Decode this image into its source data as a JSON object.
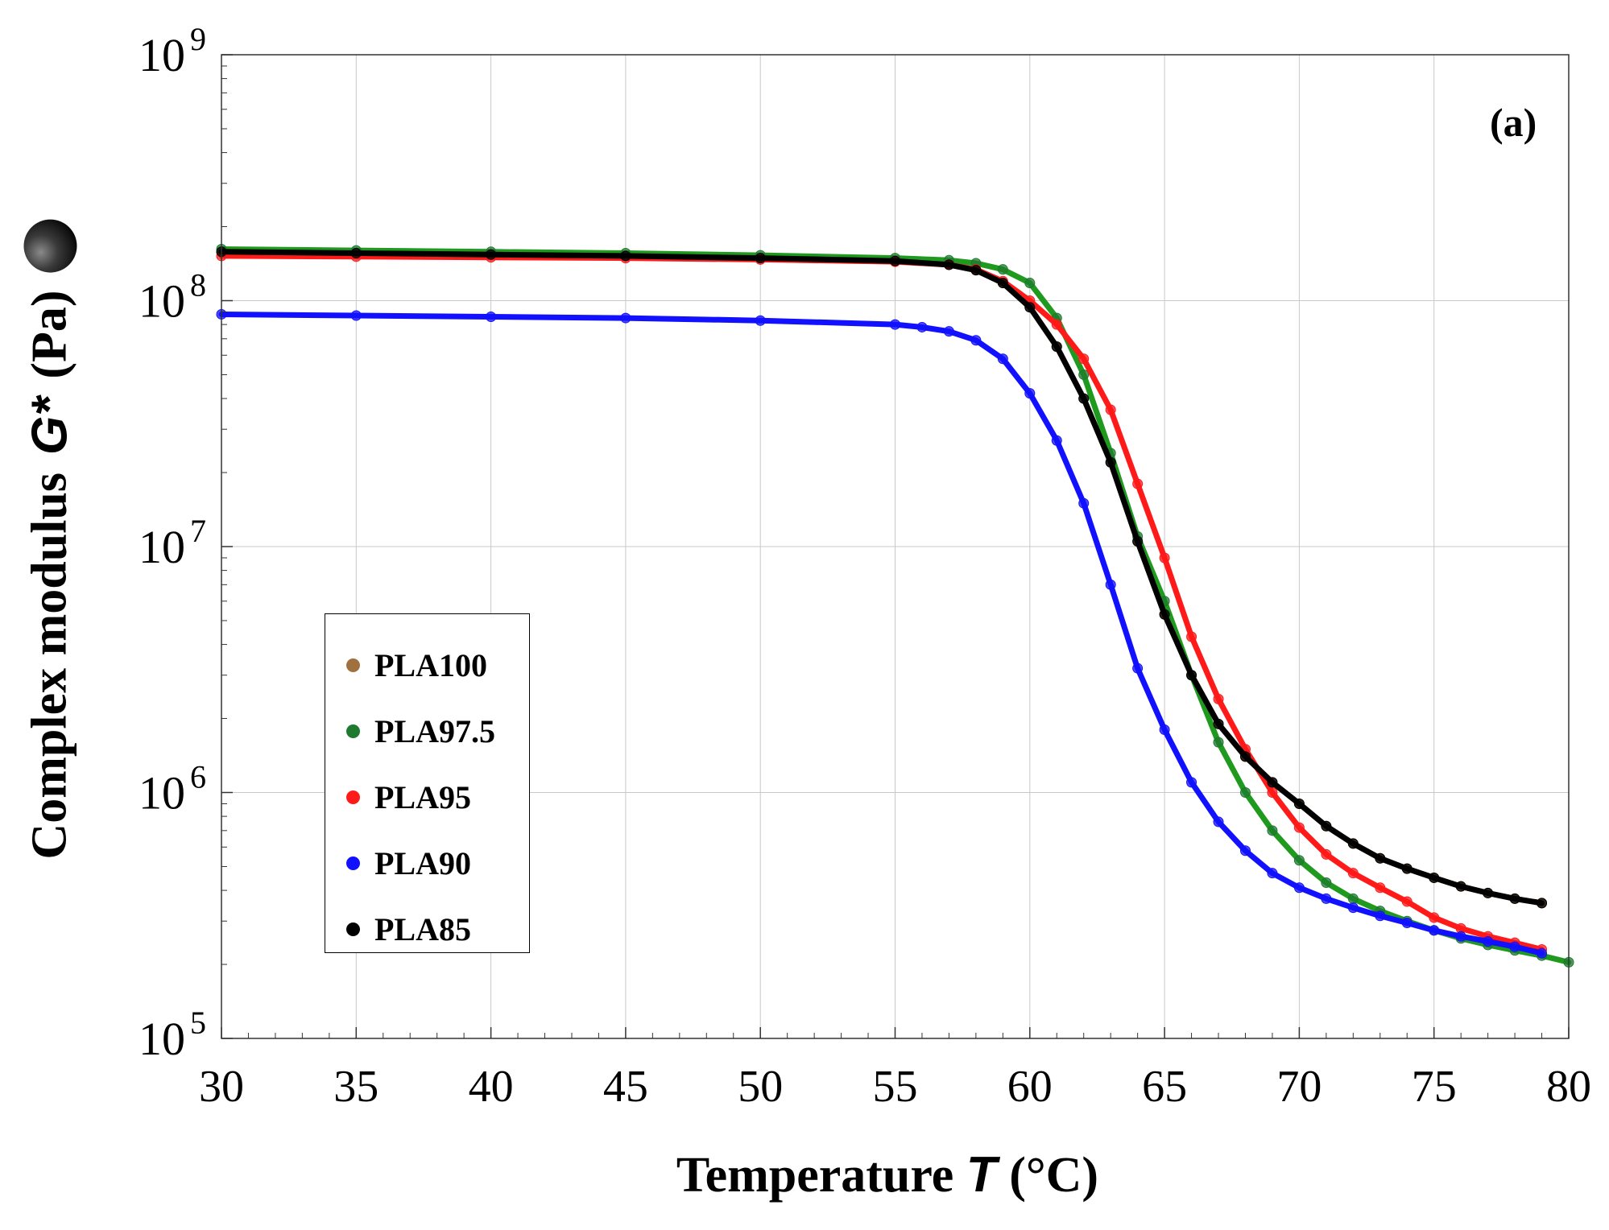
{
  "chart_data": {
    "type": "line",
    "title": "",
    "panel_label": "(a)",
    "xlabel_prefix": "Temperature",
    "xlabel_symbol": "T",
    "xlabel_unit": "(°C)",
    "ylabel_prefix": "Complex modulus",
    "ylabel_symbol": "G*",
    "ylabel_unit": "(Pa)",
    "xlim": [
      30,
      80
    ],
    "ylim": [
      100000,
      1000000000
    ],
    "yscale": "log",
    "xticks": [
      30,
      35,
      40,
      45,
      50,
      55,
      60,
      65,
      70,
      75,
      80
    ],
    "yticks": [
      {
        "base": "10",
        "exp": "5",
        "value": 100000
      },
      {
        "base": "10",
        "exp": "6",
        "value": 1000000
      },
      {
        "base": "10",
        "exp": "7",
        "value": 10000000
      },
      {
        "base": "10",
        "exp": "8",
        "value": 100000000
      },
      {
        "base": "10",
        "exp": "9",
        "value": 1000000000
      }
    ],
    "grid": true,
    "legend_position": "center-left",
    "series": [
      {
        "name": "PLA100",
        "color": "#a0703f",
        "marker_color": "#a0703f",
        "x": [
          30,
          35,
          40,
          45,
          50,
          55,
          57,
          58,
          59,
          60,
          61,
          62,
          63,
          64,
          65,
          66,
          67,
          68,
          69,
          70,
          71,
          72,
          73,
          74,
          75,
          76,
          77,
          78,
          79
        ],
        "y": [
          158000000,
          156000000,
          154000000,
          152000000,
          149000000,
          145000000,
          140000000,
          133000000,
          118000000,
          94000000,
          65000000,
          40000000,
          22000000,
          10500000,
          5300000,
          3000000,
          1900000,
          1400000,
          1100000,
          900000,
          730000,
          620000,
          540000,
          490000,
          450000,
          415000,
          390000,
          370000,
          355000
        ]
      },
      {
        "name": "PLA97.5",
        "color": "#1f9a1f",
        "marker_color": "#1e7a2e",
        "x": [
          30,
          35,
          40,
          45,
          50,
          55,
          57,
          58,
          59,
          60,
          61,
          62,
          63,
          64,
          65,
          66,
          67,
          68,
          69,
          70,
          71,
          72,
          73,
          74,
          75,
          76,
          77,
          78,
          79,
          80
        ],
        "y": [
          162000000,
          160000000,
          158000000,
          156000000,
          153000000,
          149000000,
          146000000,
          142000000,
          134000000,
          118000000,
          85000000,
          50000000,
          24000000,
          11000000,
          6000000,
          3000000,
          1600000,
          1000000,
          700000,
          530000,
          430000,
          370000,
          330000,
          300000,
          275000,
          255000,
          240000,
          228000,
          217000,
          204000
        ]
      },
      {
        "name": "PLA95",
        "color": "#ff1a1a",
        "marker_color": "#ff1a1a",
        "x": [
          30,
          35,
          40,
          45,
          50,
          55,
          57,
          58,
          59,
          60,
          61,
          62,
          63,
          64,
          65,
          66,
          67,
          68,
          69,
          70,
          71,
          72,
          73,
          74,
          75,
          76,
          77,
          78,
          79
        ],
        "y": [
          152000000,
          151000000,
          150000000,
          149000000,
          147000000,
          144000000,
          140000000,
          134000000,
          120000000,
          100000000,
          80000000,
          58000000,
          36000000,
          18000000,
          9000000,
          4300000,
          2400000,
          1500000,
          1000000,
          720000,
          560000,
          470000,
          410000,
          360000,
          310000,
          280000,
          260000,
          245000,
          230000
        ]
      },
      {
        "name": "PLA90",
        "color": "#1111ff",
        "marker_color": "#1111ff",
        "x": [
          30,
          35,
          40,
          45,
          50,
          55,
          56,
          57,
          58,
          59,
          60,
          61,
          62,
          63,
          64,
          65,
          66,
          67,
          68,
          69,
          70,
          71,
          72,
          73,
          74,
          75,
          76,
          77,
          78,
          79
        ],
        "y": [
          88000000,
          87000000,
          86000000,
          85000000,
          83000000,
          80000000,
          78000000,
          75000000,
          69000000,
          58000000,
          42000000,
          27000000,
          15000000,
          7000000,
          3200000,
          1800000,
          1100000,
          760000,
          580000,
          470000,
          410000,
          370000,
          340000,
          315000,
          295000,
          275000,
          260000,
          248000,
          236000,
          222000
        ]
      },
      {
        "name": "PLA85",
        "color": "#000000",
        "marker_color": "#000000",
        "x": [
          30,
          35,
          40,
          45,
          50,
          55,
          57,
          58,
          59,
          60,
          61,
          62,
          63,
          64,
          65,
          66,
          67,
          68,
          69,
          70,
          71,
          72,
          73,
          74,
          75,
          76,
          77,
          78,
          79
        ],
        "y": [
          158000000,
          156000000,
          154000000,
          152000000,
          149000000,
          145000000,
          140000000,
          133000000,
          118000000,
          94000000,
          65000000,
          40000000,
          22000000,
          10500000,
          5300000,
          3000000,
          1900000,
          1400000,
          1100000,
          900000,
          730000,
          620000,
          540000,
          490000,
          450000,
          415000,
          390000,
          370000,
          355000
        ]
      }
    ]
  }
}
